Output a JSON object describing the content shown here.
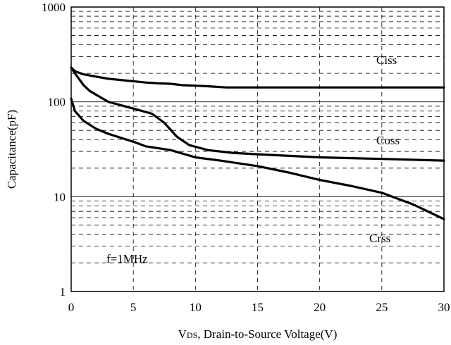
{
  "chart_data": {
    "type": "line",
    "title": "",
    "xlabel_prefix": "V",
    "xlabel_subscript": "DS",
    "xlabel_rest": ", Drain-to-Source Voltage(V)",
    "ylabel": "Capacitance(pF)",
    "xlim": [
      0,
      30
    ],
    "ylim": [
      1,
      1000
    ],
    "yscale": "log",
    "grid": true,
    "x_ticks": [
      0,
      5,
      10,
      15,
      20,
      25,
      30
    ],
    "x_tick_labels": [
      "0",
      "5",
      "10",
      "15",
      "20",
      "25",
      "30"
    ],
    "y_ticks": [
      1,
      10,
      100,
      1000
    ],
    "y_tick_labels": [
      "1",
      "10",
      "100",
      "1000"
    ],
    "annotation": "f=1MHz",
    "series": [
      {
        "name": "Ciss",
        "x": [
          0,
          0.3,
          1,
          3,
          6,
          7,
          8,
          9,
          10,
          11,
          12,
          12.5,
          15,
          20,
          25,
          30
        ],
        "y": [
          230,
          210,
          195,
          175,
          160,
          157,
          155,
          150,
          148,
          146,
          143,
          142,
          142,
          142,
          142,
          142
        ]
      },
      {
        "name": "Coss",
        "x": [
          0,
          0.3,
          1,
          1.5,
          3,
          5,
          6.5,
          7.5,
          8.5,
          9.5,
          11,
          13,
          15,
          20,
          25,
          30
        ],
        "y": [
          230,
          200,
          150,
          130,
          100,
          85,
          75,
          60,
          43,
          35,
          31,
          29,
          28,
          26,
          25,
          24
        ]
      },
      {
        "name": "Crss",
        "x": [
          0,
          0.3,
          1,
          2,
          3,
          5,
          6,
          8,
          10,
          12,
          15,
          17.5,
          20,
          22.5,
          25,
          27.5,
          30
        ],
        "y": [
          108,
          80,
          63,
          52,
          46,
          38,
          34,
          31,
          26,
          24,
          21,
          18,
          15,
          13,
          11,
          8.3,
          5.8
        ]
      }
    ]
  }
}
